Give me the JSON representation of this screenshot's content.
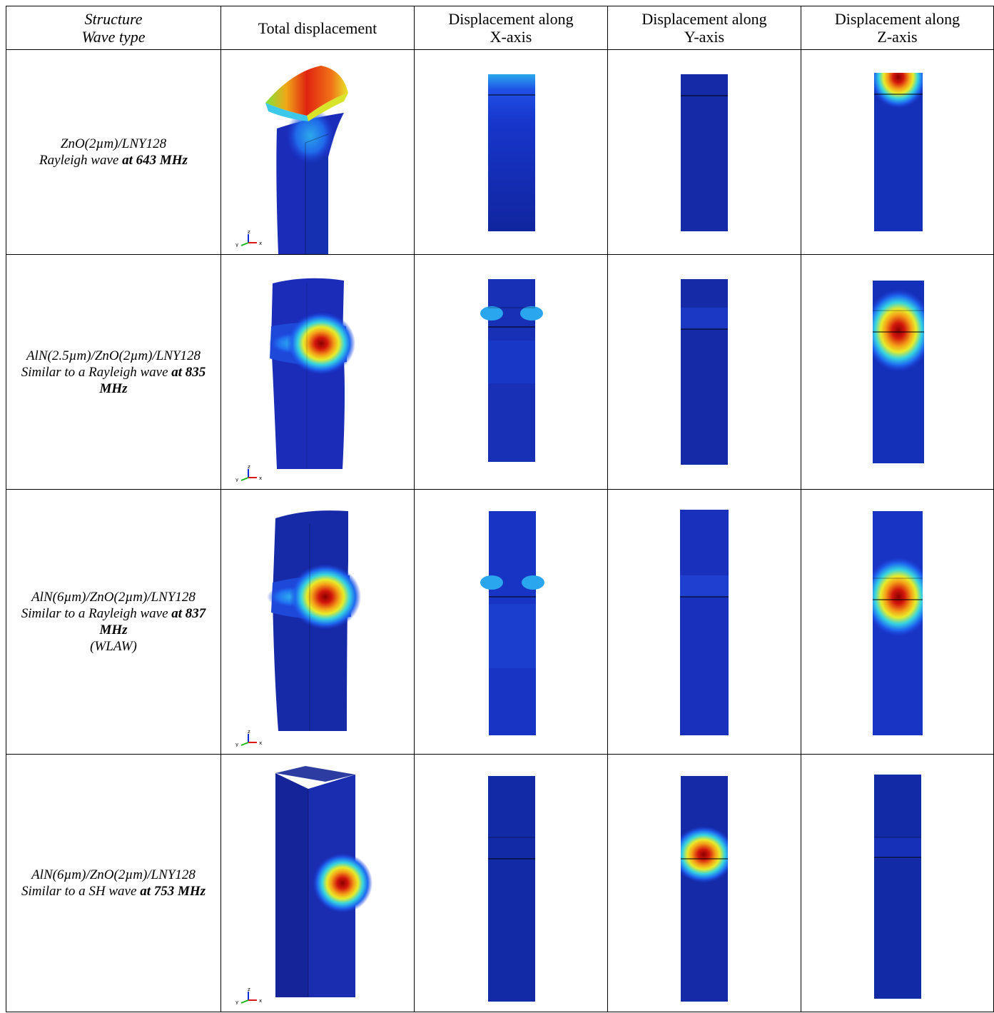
{
  "header": {
    "structure_label": "Structure",
    "wave_type_label": "Wave type",
    "total": "Total displacement",
    "x_line1": "Displacement along",
    "x_line2": "X-axis",
    "y_line1": "Displacement along",
    "y_line2": "Y-axis",
    "z_line1": "Displacement along",
    "z_line2": "Z-axis"
  },
  "rows": [
    {
      "structure": "ZnO(2µm)/LNY128",
      "wave_prefix": "Rayleigh wave ",
      "freq": "at 643 MHz",
      "extra": ""
    },
    {
      "structure": "AlN(2.5µm)/ZnO(2µm)/LNY128",
      "wave_prefix": "Similar to a Rayleigh wave ",
      "freq": "at 835 MHz",
      "extra": ""
    },
    {
      "structure": "AlN(6µm)/ZnO(2µm)/LNY128",
      "wave_prefix": "Similar to a Rayleigh wave ",
      "freq": "at 837 MHz",
      "extra": "(WLAW)"
    },
    {
      "structure": "AlN(6µm)/ZnO(2µm)/LNY128",
      "wave_prefix": "Similar to a SH wave ",
      "freq": "at 753 MHz",
      "extra": ""
    }
  ],
  "axis_triad": {
    "y": "y",
    "z": "z",
    "x": "x"
  },
  "colors": {
    "deep_blue": "#0a1f9a",
    "mid_blue": "#1f4ee0",
    "cyan": "#27c6e6",
    "yellow": "#f2e21c",
    "red": "#c8120c"
  }
}
